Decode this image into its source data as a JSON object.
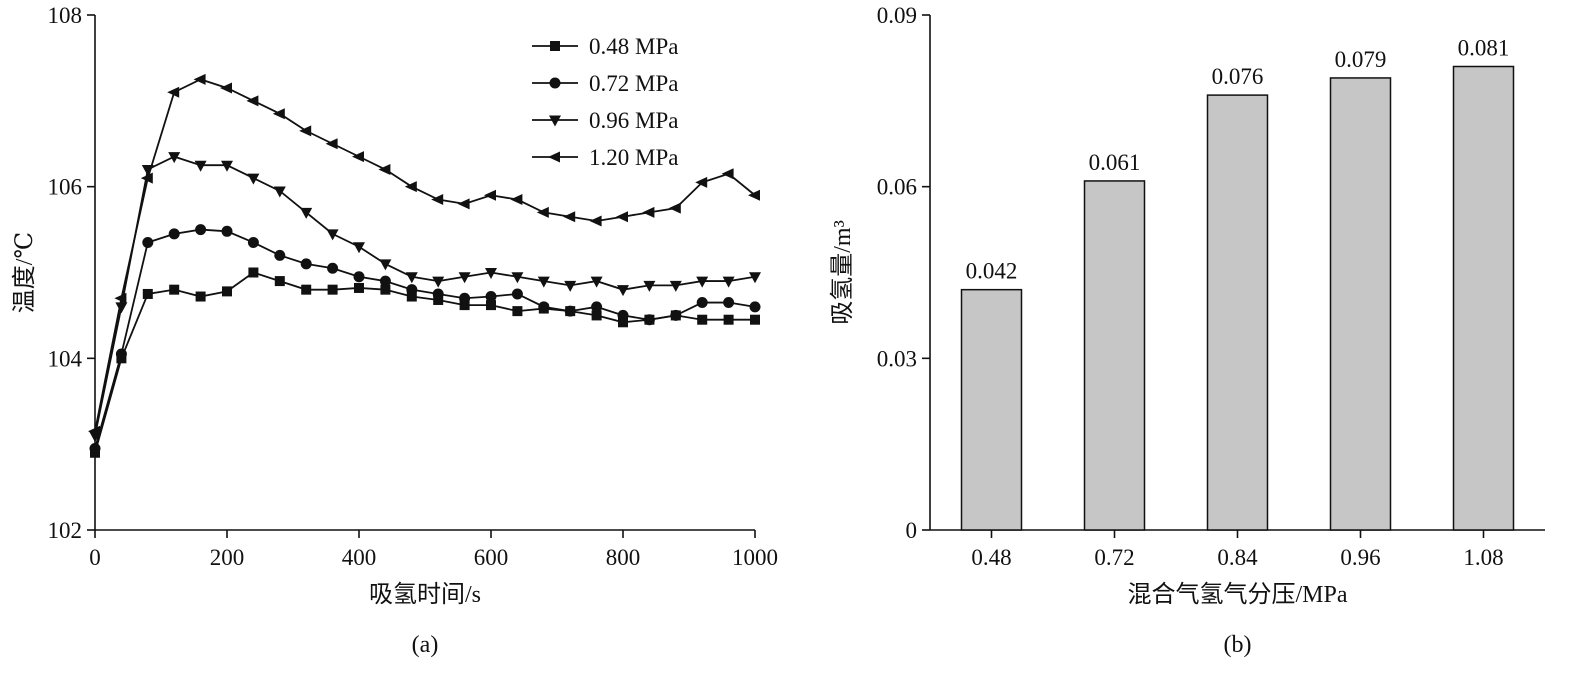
{
  "figure": {
    "caption_a": "(a)",
    "caption_b": "(b)"
  },
  "chart_data": [
    {
      "type": "line",
      "panel": "a",
      "title": "",
      "xlabel": "吸氢时间/s",
      "ylabel": "温度/℃",
      "xlim": [
        0,
        1000
      ],
      "ylim": [
        102,
        108
      ],
      "xticks": [
        0,
        200,
        400,
        600,
        800,
        1000
      ],
      "yticks": [
        102,
        104,
        106,
        108
      ],
      "grid": false,
      "legend_position": "top-right-inside",
      "line_color": "#111111",
      "x": [
        0,
        40,
        80,
        120,
        160,
        200,
        240,
        280,
        320,
        360,
        400,
        440,
        480,
        520,
        560,
        600,
        640,
        680,
        720,
        760,
        800,
        840,
        880,
        920,
        960,
        1000
      ],
      "series": [
        {
          "name": "0.48 MPa",
          "marker": "square",
          "values": [
            102.9,
            104.0,
            104.75,
            104.8,
            104.72,
            104.78,
            105.0,
            104.9,
            104.8,
            104.8,
            104.82,
            104.8,
            104.72,
            104.68,
            104.62,
            104.62,
            104.55,
            104.58,
            104.55,
            104.5,
            104.42,
            104.45,
            104.5,
            104.45,
            104.45,
            104.45
          ]
        },
        {
          "name": "0.72 MPa",
          "marker": "circle",
          "values": [
            102.95,
            104.05,
            105.35,
            105.45,
            105.5,
            105.48,
            105.35,
            105.2,
            105.1,
            105.05,
            104.95,
            104.9,
            104.8,
            104.75,
            104.7,
            104.72,
            104.75,
            104.6,
            104.55,
            104.6,
            104.5,
            104.45,
            104.5,
            104.65,
            104.65,
            104.6
          ]
        },
        {
          "name": "0.96 MPa",
          "marker": "triangle-down",
          "values": [
            103.1,
            104.6,
            106.2,
            106.35,
            106.25,
            106.25,
            106.1,
            105.95,
            105.7,
            105.45,
            105.3,
            105.1,
            104.95,
            104.9,
            104.95,
            105.0,
            104.95,
            104.9,
            104.85,
            104.9,
            104.8,
            104.85,
            104.85,
            104.9,
            104.9,
            104.95
          ]
        },
        {
          "name": "1.20 MPa",
          "marker": "triangle-left",
          "values": [
            103.15,
            104.7,
            106.1,
            107.1,
            107.25,
            107.15,
            107.0,
            106.85,
            106.65,
            106.5,
            106.35,
            106.2,
            106.0,
            105.85,
            105.8,
            105.9,
            105.85,
            105.7,
            105.65,
            105.6,
            105.65,
            105.7,
            105.75,
            106.05,
            106.15,
            105.9
          ]
        }
      ]
    },
    {
      "type": "bar",
      "panel": "b",
      "title": "",
      "xlabel": "混合气氢气分压/MPa",
      "ylabel": "吸氢量/m³",
      "categories": [
        "0.48",
        "0.72",
        "0.84",
        "0.96",
        "1.08"
      ],
      "values": [
        0.042,
        0.061,
        0.076,
        0.079,
        0.081
      ],
      "value_labels": [
        "0.042",
        "0.061",
        "0.076",
        "0.079",
        "0.081"
      ],
      "ylim": [
        0,
        0.09
      ],
      "yticks": [
        0,
        0.03,
        0.06,
        0.09
      ],
      "ytick_labels": [
        "0",
        "0.03",
        "0.06",
        "0.09"
      ],
      "grid": false,
      "bar_fill": "#c6c6c6",
      "bar_stroke": "#111111"
    }
  ]
}
